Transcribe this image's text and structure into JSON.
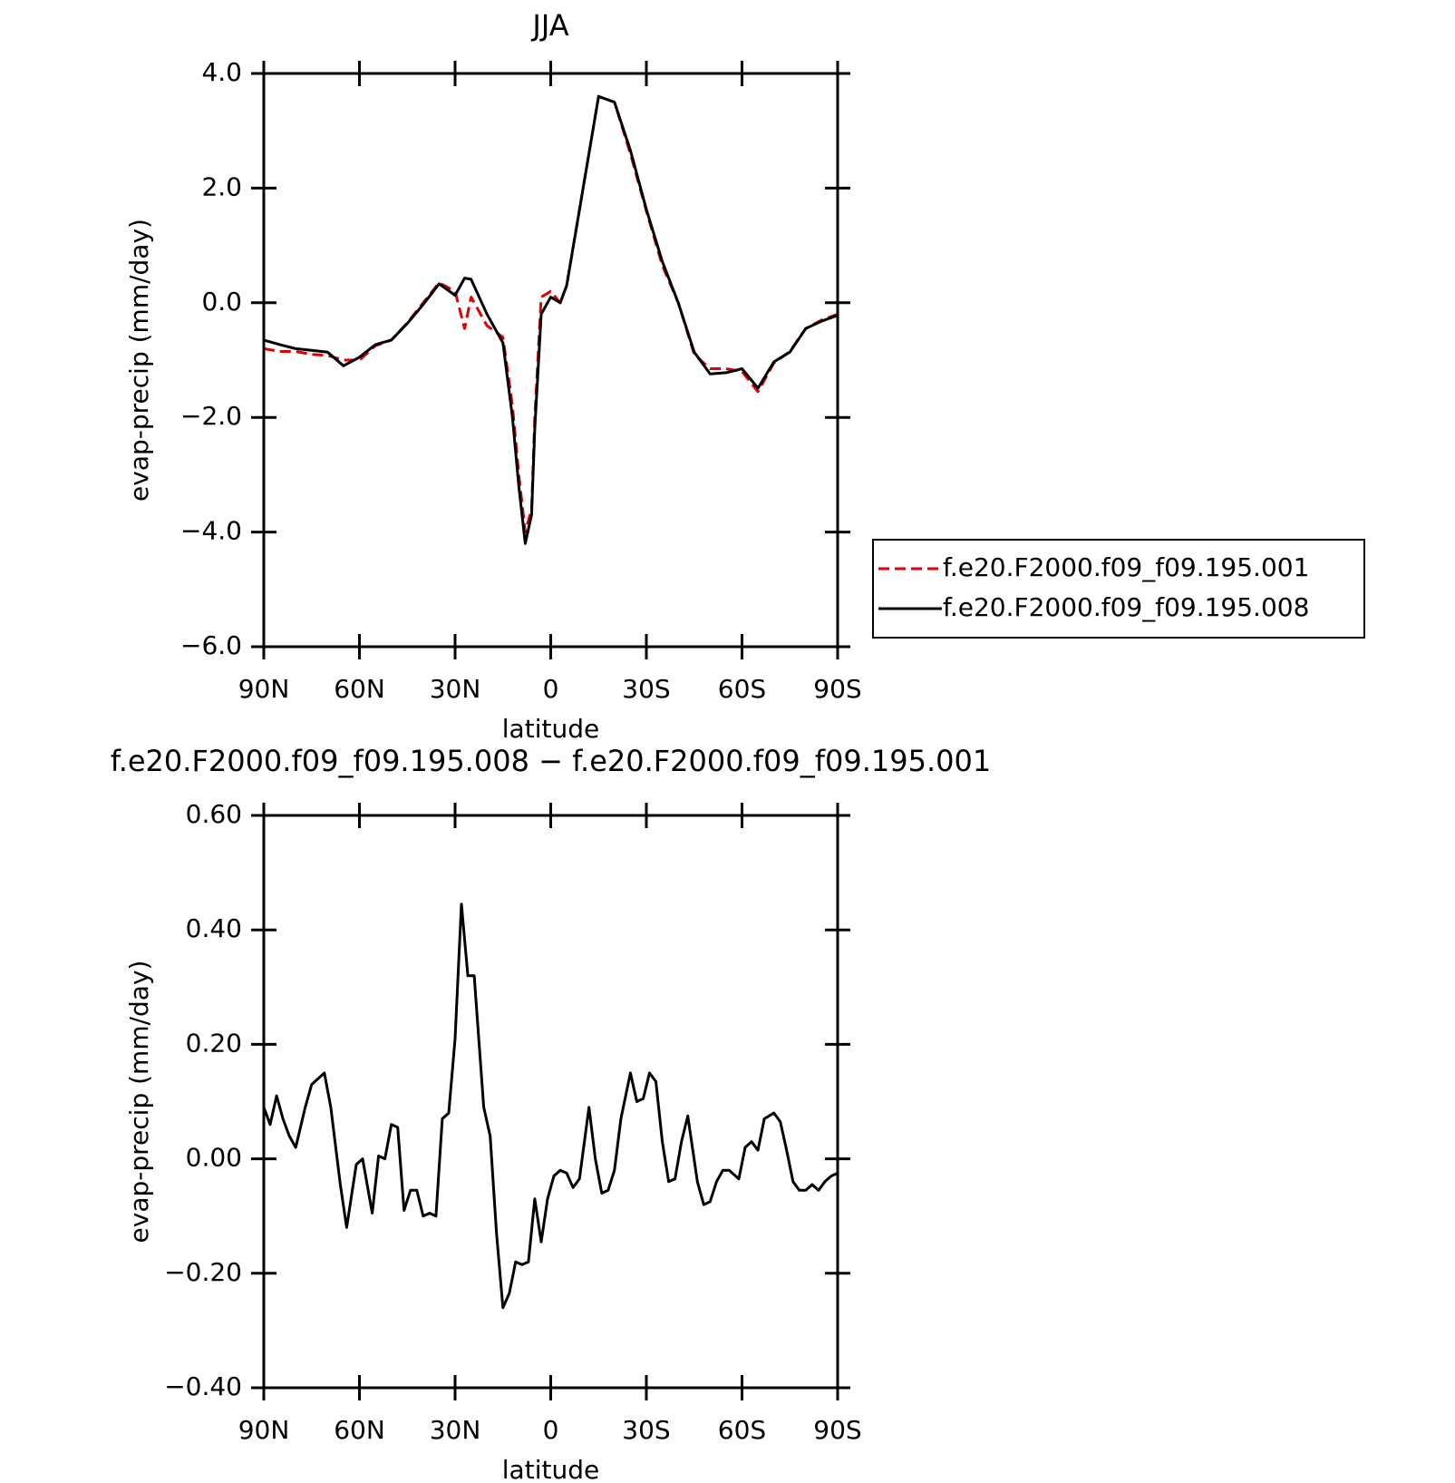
{
  "chart_data": [
    {
      "type": "line",
      "title": "JJA",
      "xlabel": "latitude",
      "ylabel": "evap-precip (mm/day)",
      "xlim": [
        90,
        -90
      ],
      "xticks": [
        {
          "value": 90,
          "label": "90N"
        },
        {
          "value": 60,
          "label": "60N"
        },
        {
          "value": 30,
          "label": "30N"
        },
        0,
        {
          "value": -30,
          "label": "30S"
        },
        {
          "value": -60,
          "label": "60S"
        },
        {
          "value": -90,
          "label": "90S"
        }
      ],
      "ylim": [
        -6,
        4
      ],
      "yticks": [
        {
          "value": -6,
          "label": "−6.0"
        },
        {
          "value": -4,
          "label": "−4.0"
        },
        {
          "value": -2,
          "label": "−2.0"
        },
        {
          "value": 0,
          "label": "0.0"
        },
        {
          "value": 2,
          "label": "2.0"
        },
        {
          "value": 4,
          "label": "4.0"
        }
      ],
      "legend": "right",
      "x": [
        90,
        85,
        80,
        75,
        70,
        65,
        60,
        55,
        50,
        45,
        40,
        35,
        30,
        27,
        25,
        20,
        15,
        12,
        10,
        8,
        6,
        5,
        3,
        0,
        -3,
        -5,
        -10,
        -15,
        -20,
        -25,
        -30,
        -35,
        -40,
        -45,
        -50,
        -55,
        -60,
        -65,
        -70,
        -75,
        -80,
        -85,
        -90
      ],
      "series": [
        {
          "name": "f.e20.F2000.f09_f09.195.001",
          "color": "#e00000",
          "style": "dashed",
          "values": [
            -0.8,
            -0.85,
            -0.85,
            -0.9,
            -0.92,
            -1.0,
            -1.0,
            -0.75,
            -0.65,
            -0.35,
            0,
            0.35,
            0.2,
            -0.45,
            0.1,
            -0.4,
            -0.6,
            -1.8,
            -3.0,
            -4.0,
            -3.6,
            -2.0,
            0.1,
            0.2,
            0,
            0.3,
            1.95,
            3.6,
            3.5,
            2.6,
            1.6,
            0.65,
            0,
            -0.9,
            -1.15,
            -1.15,
            -1.2,
            -1.55,
            -1.05,
            -0.85,
            -0.45,
            -0.3,
            -0.2
          ]
        },
        {
          "name": "f.e20.F2000.f09_f09.195.008",
          "color": "#000000",
          "style": "solid",
          "values": [
            -0.65,
            -0.73,
            -0.8,
            -0.83,
            -0.86,
            -1.1,
            -0.95,
            -0.73,
            -0.65,
            -0.36,
            -0.03,
            0.33,
            0.13,
            0.43,
            0.41,
            -0.2,
            -0.7,
            -2.0,
            -3.2,
            -4.2,
            -3.7,
            -2.2,
            -0.2,
            0.1,
            0,
            0.3,
            1.95,
            3.6,
            3.5,
            2.66,
            1.63,
            0.72,
            0,
            -0.86,
            -1.24,
            -1.22,
            -1.15,
            -1.49,
            -1.03,
            -0.86,
            -0.45,
            -0.32,
            -0.22
          ]
        }
      ]
    },
    {
      "type": "line",
      "title": "f.e20.F2000.f09_f09.195.008 − f.e20.F2000.f09_f09.195.001",
      "xlabel": "latitude",
      "ylabel": "evap-precip (mm/day)",
      "xlim": [
        90,
        -90
      ],
      "xticks": [
        {
          "value": 90,
          "label": "90N"
        },
        {
          "value": 60,
          "label": "60N"
        },
        {
          "value": 30,
          "label": "30N"
        },
        0,
        {
          "value": -30,
          "label": "30S"
        },
        {
          "value": -60,
          "label": "60S"
        },
        {
          "value": -90,
          "label": "90S"
        }
      ],
      "ylim": [
        -0.4,
        0.6
      ],
      "yticks": [
        {
          "value": -0.4,
          "label": "−0.40"
        },
        {
          "value": -0.2,
          "label": "−0.20"
        },
        {
          "value": 0,
          "label": "0.00"
        },
        {
          "value": 0.2,
          "label": "0.20"
        },
        {
          "value": 0.4,
          "label": "0.40"
        },
        {
          "value": 0.6,
          "label": "0.60"
        }
      ],
      "x": [
        90,
        88,
        86,
        84,
        82,
        80,
        77,
        75,
        71,
        69,
        66,
        64,
        61,
        59,
        56,
        54,
        52,
        50,
        48,
        46,
        44,
        42,
        40,
        38,
        36,
        34,
        32,
        30,
        28,
        26,
        24,
        21,
        19,
        17,
        15,
        13,
        11,
        9,
        7,
        5,
        3,
        1,
        -1,
        -3,
        -5,
        -7,
        -9,
        -12,
        -14,
        -16,
        -18,
        -20,
        -22,
        -25,
        -27,
        -29,
        -31,
        -33,
        -35,
        -37,
        -39,
        -41,
        -43,
        -46,
        -48,
        -50,
        -52,
        -54,
        -56,
        -59,
        -61,
        -63,
        -65,
        -67,
        -70,
        -72,
        -74,
        -76,
        -78,
        -80,
        -82,
        -84,
        -86,
        -88,
        -90
      ],
      "series": [
        {
          "color": "#000000",
          "style": "solid",
          "values": [
            0.09,
            0.06,
            0.11,
            0.07,
            0.04,
            0.02,
            0.09,
            0.13,
            0.15,
            0.09,
            -0.045,
            -0.12,
            -0.01,
            0,
            -0.095,
            0.005,
            0,
            0.06,
            0.055,
            -0.09,
            -0.055,
            -0.055,
            -0.1,
            -0.095,
            -0.1,
            0.07,
            0.08,
            0.21,
            0.445,
            0.32,
            0.32,
            0.09,
            0.04,
            -0.13,
            -0.26,
            -0.235,
            -0.18,
            -0.185,
            -0.18,
            -0.07,
            -0.145,
            -0.07,
            -0.03,
            -0.02,
            -0.025,
            -0.05,
            -0.035,
            0.09,
            0,
            -0.06,
            -0.055,
            -0.02,
            0.07,
            0.15,
            0.1,
            0.105,
            0.15,
            0.135,
            0.03,
            -0.04,
            -0.035,
            0.03,
            0.075,
            -0.04,
            -0.08,
            -0.075,
            -0.04,
            -0.02,
            -0.02,
            -0.035,
            0.02,
            0.03,
            0.015,
            0.07,
            0.08,
            0.065,
            0.015,
            -0.04,
            -0.055,
            -0.055,
            -0.045,
            -0.055,
            -0.04,
            -0.03,
            -0.025
          ]
        }
      ]
    }
  ]
}
